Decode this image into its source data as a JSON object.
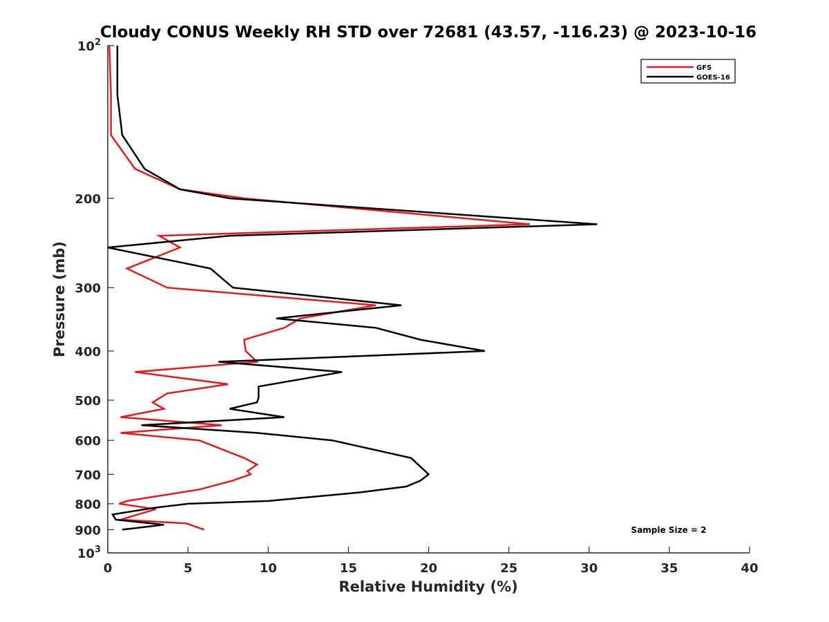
{
  "chart_data": {
    "type": "line",
    "title": "Cloudy CONUS Weekly RH STD over 72681 (43.57, -116.23) @ 2023-10-16",
    "xlabel": "Relative Humidity (%)",
    "ylabel": "Pressure (mb)",
    "xlim": [
      0,
      40
    ],
    "ylim": [
      100,
      1000
    ],
    "y_scale": "log",
    "y_reversed": true,
    "x_ticks": [
      0,
      5,
      10,
      15,
      20,
      25,
      30,
      35,
      40
    ],
    "y_ticks": [
      {
        "value": 100,
        "label": "10",
        "sup": "2"
      },
      {
        "value": 200,
        "label": "200",
        "sup": ""
      },
      {
        "value": 300,
        "label": "300",
        "sup": ""
      },
      {
        "value": 400,
        "label": "400",
        "sup": ""
      },
      {
        "value": 500,
        "label": "500",
        "sup": ""
      },
      {
        "value": 600,
        "label": "600",
        "sup": ""
      },
      {
        "value": 700,
        "label": "700",
        "sup": ""
      },
      {
        "value": 800,
        "label": "800",
        "sup": ""
      },
      {
        "value": 900,
        "label": "900",
        "sup": ""
      },
      {
        "value": 1000,
        "label": "10",
        "sup": "3"
      }
    ],
    "grid": false,
    "legend_position": "top-right",
    "series": [
      {
        "name": "GFS",
        "color": "#e41a1c",
        "points": [
          [
            0.1,
            100
          ],
          [
            0.2,
            125
          ],
          [
            0.2,
            150
          ],
          [
            1.7,
            175
          ],
          [
            4.5,
            192
          ],
          [
            8.5,
            200
          ],
          [
            26.3,
            225
          ],
          [
            3.2,
            237
          ],
          [
            4.5,
            250
          ],
          [
            1.2,
            275
          ],
          [
            3.7,
            300
          ],
          [
            16.7,
            325
          ],
          [
            12.0,
            345
          ],
          [
            11.0,
            360
          ],
          [
            8.5,
            380
          ],
          [
            8.6,
            400
          ],
          [
            9.3,
            420
          ],
          [
            1.7,
            440
          ],
          [
            7.5,
            465
          ],
          [
            3.7,
            485
          ],
          [
            2.8,
            505
          ],
          [
            3.5,
            520
          ],
          [
            0.8,
            540
          ],
          [
            7.1,
            560
          ],
          [
            0.8,
            580
          ],
          [
            5.7,
            600
          ],
          [
            8.5,
            650
          ],
          [
            9.3,
            670
          ],
          [
            8.7,
            690
          ],
          [
            8.9,
            700
          ],
          [
            7.8,
            720
          ],
          [
            5.7,
            750
          ],
          [
            1.2,
            790
          ],
          [
            0.7,
            800
          ],
          [
            3.0,
            820
          ],
          [
            0.8,
            860
          ],
          [
            4.9,
            875
          ],
          [
            6.0,
            900
          ]
        ]
      },
      {
        "name": "GOES-16",
        "color": "#000000",
        "points": [
          [
            0.6,
            100
          ],
          [
            0.6,
            125
          ],
          [
            0.9,
            150
          ],
          [
            2.3,
            175
          ],
          [
            4.5,
            192
          ],
          [
            7.6,
            200
          ],
          [
            30.5,
            225
          ],
          [
            7.6,
            237
          ],
          [
            0.0,
            250
          ],
          [
            6.4,
            275
          ],
          [
            7.8,
            300
          ],
          [
            18.3,
            325
          ],
          [
            10.5,
            345
          ],
          [
            16.7,
            360
          ],
          [
            19.5,
            380
          ],
          [
            23.5,
            400
          ],
          [
            6.9,
            420
          ],
          [
            14.6,
            440
          ],
          [
            9.4,
            470
          ],
          [
            9.4,
            495
          ],
          [
            9.3,
            505
          ],
          [
            7.6,
            520
          ],
          [
            11.0,
            540
          ],
          [
            2.1,
            560
          ],
          [
            9.3,
            580
          ],
          [
            14.0,
            600
          ],
          [
            18.9,
            650
          ],
          [
            20.0,
            700
          ],
          [
            19.5,
            720
          ],
          [
            18.6,
            740
          ],
          [
            15.7,
            760
          ],
          [
            10.0,
            790
          ],
          [
            5.0,
            800
          ],
          [
            2.9,
            815
          ],
          [
            0.3,
            840
          ],
          [
            0.5,
            860
          ],
          [
            3.5,
            880
          ],
          [
            0.9,
            900
          ]
        ]
      }
    ],
    "annotation": "Sample Size = 2"
  }
}
